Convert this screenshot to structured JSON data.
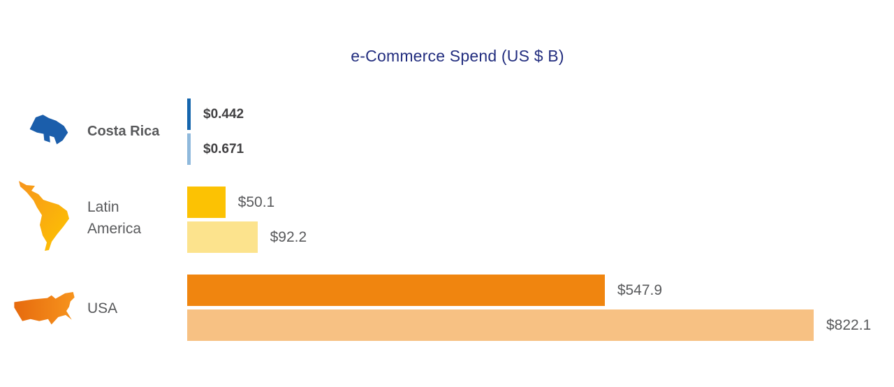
{
  "title": "e-Commerce Spend (US $ B)",
  "chart_data": {
    "type": "bar",
    "orientation": "horizontal",
    "title": "e-Commerce Spend (US $ B)",
    "unit": "US $ B",
    "categories": [
      "Costa Rica",
      "Latin America",
      "USA"
    ],
    "series": [
      {
        "name": "dark",
        "values": [
          0.442,
          50.1,
          547.9
        ]
      },
      {
        "name": "light",
        "values": [
          0.671,
          92.2,
          822.1
        ]
      }
    ],
    "value_labels": [
      [
        "$0.442",
        "$0.671"
      ],
      [
        "$50.1",
        "$92.2"
      ],
      [
        "$547.9",
        "$822.1"
      ]
    ],
    "xlim": [
      0,
      822.1
    ],
    "grid": false,
    "legend": false
  },
  "colors": {
    "title": "#232e7f",
    "category_label": "#58595b",
    "value_label": "#58595b",
    "value_label_bold": "#414042",
    "bars": [
      [
        "#1565ad",
        "#8fb9dc"
      ],
      [
        "#fcc203",
        "#fce38d"
      ],
      [
        "#f0850f",
        "#f7c183"
      ]
    ],
    "icons": {
      "costa_rica": "#1b5eab",
      "latin_america_gradient": [
        "#f7941d",
        "#fdc500"
      ],
      "usa_gradient": [
        "#e66a0e",
        "#f7941d"
      ]
    }
  }
}
